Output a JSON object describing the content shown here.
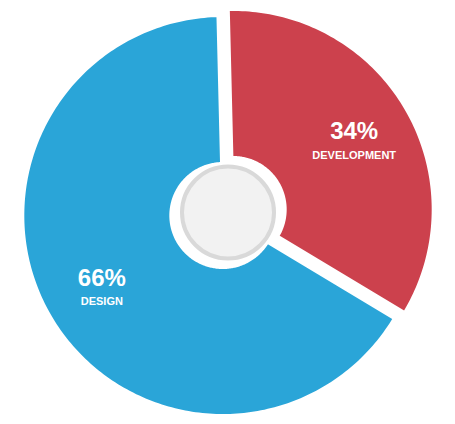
{
  "chart_data": {
    "type": "pie",
    "categories": [
      "DESIGN",
      "DEVELOPMENT"
    ],
    "values": [
      66,
      34
    ],
    "value_labels": [
      "66%",
      "34%"
    ],
    "colors": [
      "#2aa5d8",
      "#cc414d"
    ],
    "data_labels": true
  }
}
